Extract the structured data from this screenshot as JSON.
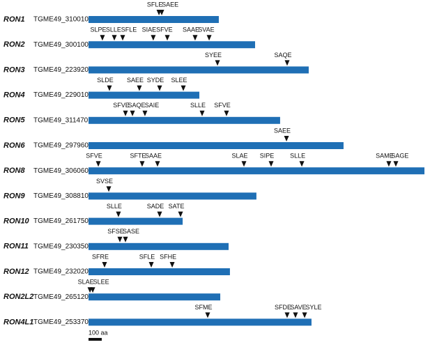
{
  "scale_bar": "100 aa",
  "proteins": [
    {
      "name": "RON1",
      "gene": "TGME49_310010",
      "length": 984,
      "motifs": [
        {
          "label": "SFLE",
          "position": 532
        },
        {
          "label": "SAEE",
          "position": 553
        }
      ]
    },
    {
      "name": "RON2",
      "gene": "TGME49_300100",
      "length": 1258,
      "motifs": [
        {
          "label": "SLPE",
          "position": 105
        },
        {
          "label": "SLLE",
          "position": 195
        },
        {
          "label": "SFLE",
          "position": 258
        },
        {
          "label": "SIAE",
          "position": 489
        },
        {
          "label": "SFVE",
          "position": 595
        },
        {
          "label": "SAAE",
          "position": 805
        },
        {
          "label": "SVAE",
          "position": 911
        }
      ]
    },
    {
      "name": "RON3",
      "gene": "TGME49_223920",
      "length": 1663,
      "motifs": [
        {
          "label": "SYEE",
          "position": 974
        },
        {
          "label": "SAQE",
          "position": 1500
        }
      ]
    },
    {
      "name": "RON4",
      "gene": "TGME49_229010",
      "length": 837,
      "motifs": [
        {
          "label": "SLDE",
          "position": 158
        },
        {
          "label": "SAEE",
          "position": 384
        },
        {
          "label": "SYDE",
          "position": 537
        },
        {
          "label": "SLEE",
          "position": 716
        }
      ]
    },
    {
      "name": "RON5",
      "gene": "TGME49_311470",
      "length": 1447,
      "motifs": [
        {
          "label": "SFVE",
          "position": 279
        },
        {
          "label": "SAQE",
          "position": 332
        },
        {
          "label": "SAIE",
          "position": 426
        },
        {
          "label": "SLLE",
          "position": 858
        },
        {
          "label": "SFVE",
          "position": 1042
        }
      ]
    },
    {
      "name": "RON6",
      "gene": "TGME49_297960",
      "length": 1926,
      "motifs": [
        {
          "label": "SAEE",
          "position": 1495
        }
      ]
    },
    {
      "name": "RON8",
      "gene": "TGME49_306060",
      "length": 2537,
      "motifs": [
        {
          "label": "SFVE",
          "position": 74
        },
        {
          "label": "SFTE",
          "position": 405
        },
        {
          "label": "SAAE",
          "position": 521
        },
        {
          "label": "SLAE",
          "position": 1174
        },
        {
          "label": "SIPE",
          "position": 1379
        },
        {
          "label": "SLLE",
          "position": 1611
        },
        {
          "label": "SAME",
          "position": 2268
        },
        {
          "label": "SAGE",
          "position": 2321
        }
      ]
    },
    {
      "name": "RON9",
      "gene": "TGME49_308810",
      "length": 1268,
      "motifs": [
        {
          "label": "SVSE",
          "position": 153
        }
      ]
    },
    {
      "name": "RON10",
      "gene": "TGME49_261750",
      "length": 711,
      "motifs": [
        {
          "label": "SLLE",
          "position": 226
        },
        {
          "label": "SADE",
          "position": 537
        },
        {
          "label": "SATE",
          "position": 695
        }
      ]
    },
    {
      "name": "RON11",
      "gene": "TGME49_230350",
      "length": 1058,
      "motifs": [
        {
          "label": "SFSE",
          "position": 237
        },
        {
          "label": "SASE",
          "position": 279
        }
      ]
    },
    {
      "name": "RON12",
      "gene": "TGME49_232020",
      "length": 1068,
      "motifs": [
        {
          "label": "SFRE",
          "position": 121
        },
        {
          "label": "SFLE",
          "position": 474
        },
        {
          "label": "SFHE",
          "position": 632
        }
      ]
    },
    {
      "name": "RON2L2",
      "gene": "TGME49_265120",
      "length": 995,
      "motifs": [
        {
          "label": "SLAE",
          "position": 11
        },
        {
          "label": "SLEE",
          "position": 32
        }
      ]
    },
    {
      "name": "RON4L1",
      "gene": "TGME49_253370",
      "length": 1684,
      "motifs": [
        {
          "label": "SFME",
          "position": 900
        },
        {
          "label": "SFDE",
          "position": 1500
        },
        {
          "label": "SAVE",
          "position": 1563
        },
        {
          "label": "SYLE",
          "position": 1632
        }
      ]
    }
  ]
}
